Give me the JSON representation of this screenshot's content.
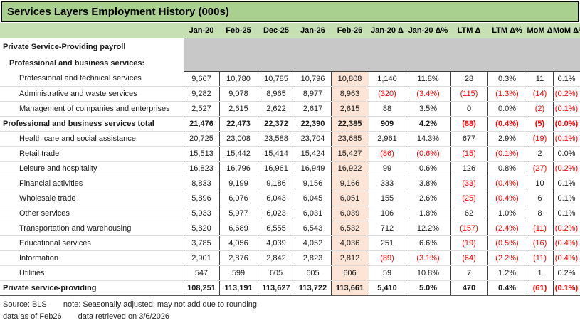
{
  "title": "Services Layers Employment History (000s)",
  "table": {
    "columns": [
      "Jan-20",
      "Feb-25",
      "Dec-25",
      "Jan-26",
      "Feb-26",
      "Jan-20 Δ",
      "Jan-20 Δ%",
      "LTM Δ",
      "LTM Δ%",
      "MoM Δ",
      "MoM Δ%"
    ],
    "highlight_column": "Feb-26",
    "section_rows": [
      {
        "label": "Private Service-Providing payroll",
        "indent": 0
      },
      {
        "label": "Professional and business services:",
        "indent": 1
      }
    ],
    "rows": [
      {
        "label": "Professional and technical services",
        "indent": 2,
        "bold": false,
        "values": [
          "9,667",
          "10,780",
          "10,785",
          "10,796",
          "10,808",
          "1,140",
          "11.8%",
          "28",
          "0.3%",
          "11",
          "0.1%"
        ]
      },
      {
        "label": "Administrative and waste services",
        "indent": 2,
        "bold": false,
        "values": [
          "9,282",
          "9,078",
          "8,965",
          "8,977",
          "8,963",
          "(320)",
          "(3.4%)",
          "(115)",
          "(1.3%)",
          "(14)",
          "(0.2%)"
        ]
      },
      {
        "label": "Management of companies and enterprises",
        "indent": 2,
        "bold": false,
        "values": [
          "2,527",
          "2,615",
          "2,622",
          "2,617",
          "2,615",
          "88",
          "3.5%",
          "0",
          "0.0%",
          "(2)",
          "(0.1%)"
        ]
      },
      {
        "label": "Professional and business services total",
        "indent": 0,
        "bold": true,
        "values": [
          "21,476",
          "22,473",
          "22,372",
          "22,390",
          "22,385",
          "909",
          "4.2%",
          "(88)",
          "(0.4%)",
          "(5)",
          "(0.0%)"
        ]
      },
      {
        "label": "Health care and social assistance",
        "indent": 2,
        "bold": false,
        "values": [
          "20,725",
          "23,008",
          "23,588",
          "23,704",
          "23,685",
          "2,961",
          "14.3%",
          "677",
          "2.9%",
          "(19)",
          "(0.1%)"
        ]
      },
      {
        "label": "Retail trade",
        "indent": 2,
        "bold": false,
        "values": [
          "15,513",
          "15,442",
          "15,414",
          "15,424",
          "15,427",
          "(86)",
          "(0.6%)",
          "(15)",
          "(0.1%)",
          "2",
          "0.0%"
        ]
      },
      {
        "label": "Leisure and hospitality",
        "indent": 2,
        "bold": false,
        "values": [
          "16,823",
          "16,796",
          "16,961",
          "16,949",
          "16,922",
          "99",
          "0.6%",
          "126",
          "0.8%",
          "(27)",
          "(0.2%)"
        ]
      },
      {
        "label": "Financial activities",
        "indent": 2,
        "bold": false,
        "values": [
          "8,833",
          "9,199",
          "9,186",
          "9,156",
          "9,166",
          "333",
          "3.8%",
          "(33)",
          "(0.4%)",
          "10",
          "0.1%"
        ]
      },
      {
        "label": "Wholesale trade",
        "indent": 2,
        "bold": false,
        "values": [
          "5,896",
          "6,076",
          "6,043",
          "6,045",
          "6,051",
          "155",
          "2.6%",
          "(25)",
          "(0.4%)",
          "6",
          "0.1%"
        ]
      },
      {
        "label": "Other services",
        "indent": 2,
        "bold": false,
        "values": [
          "5,933",
          "5,977",
          "6,023",
          "6,031",
          "6,039",
          "106",
          "1.8%",
          "62",
          "1.0%",
          "8",
          "0.1%"
        ]
      },
      {
        "label": "Transportation and warehousing",
        "indent": 2,
        "bold": false,
        "values": [
          "5,820",
          "6,689",
          "6,555",
          "6,543",
          "6,532",
          "712",
          "12.2%",
          "(157)",
          "(2.4%)",
          "(11)",
          "(0.2%)"
        ]
      },
      {
        "label": "Educational services",
        "indent": 2,
        "bold": false,
        "values": [
          "3,785",
          "4,056",
          "4,039",
          "4,052",
          "4,036",
          "251",
          "6.6%",
          "(19)",
          "(0.5%)",
          "(16)",
          "(0.4%)"
        ]
      },
      {
        "label": "Information",
        "indent": 2,
        "bold": false,
        "values": [
          "2,901",
          "2,876",
          "2,842",
          "2,823",
          "2,812",
          "(89)",
          "(3.1%)",
          "(64)",
          "(2.2%)",
          "(11)",
          "(0.4%)"
        ]
      },
      {
        "label": "Utilities",
        "indent": 2,
        "bold": false,
        "values": [
          "547",
          "599",
          "605",
          "605",
          "606",
          "59",
          "10.8%",
          "7",
          "1.2%",
          "1",
          "0.2%"
        ]
      },
      {
        "label": "Private service-providing",
        "indent": 0,
        "bold": true,
        "values": [
          "108,251",
          "113,191",
          "113,627",
          "113,722",
          "113,661",
          "5,410",
          "5.0%",
          "470",
          "0.4%",
          "(61)",
          "(0.1%)"
        ]
      }
    ]
  },
  "footer": {
    "source": "Source: BLS",
    "note": "note: Seasonally adjusted; may not add due to rounding",
    "as_of": "data as of Feb26",
    "retrieved": "data retrieved on 3/6/2026"
  },
  "colors": {
    "title_bg": "#A9D08E",
    "header_bg": "#C6E0B4",
    "gray_band": "#C8C8C8",
    "highlight_col": "#FCE4D6",
    "negative": "#FF0000"
  }
}
